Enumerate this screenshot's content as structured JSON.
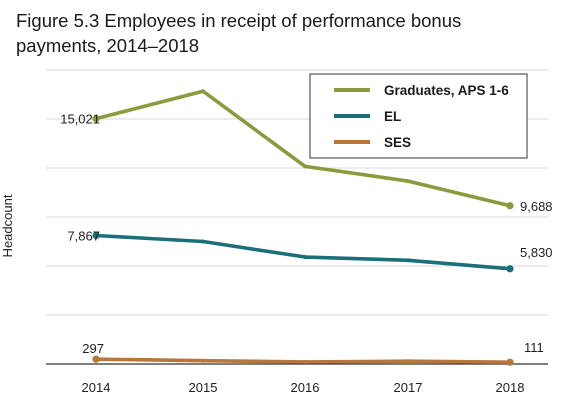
{
  "chart_data": {
    "type": "line",
    "title": "Figure 5.3 Employees in receipt of performance bonus payments, 2014–2018",
    "xlabel": "",
    "ylabel": "Headcount",
    "categories": [
      "2014",
      "2015",
      "2016",
      "2017",
      "2018"
    ],
    "ylim": [
      0,
      18000
    ],
    "grid": true,
    "legend_position": "top-right",
    "series": [
      {
        "name": "Graduates, APS 1-6",
        "color": "#8b9a3c",
        "values": [
          15021,
          16700,
          12100,
          11200,
          9688
        ],
        "labels": {
          "first": "15,021",
          "last": "9,688"
        }
      },
      {
        "name": "EL",
        "color": "#1b6f78",
        "values": [
          7867,
          7500,
          6550,
          6350,
          5830
        ],
        "labels": {
          "first": "7,867",
          "last": "5,830"
        }
      },
      {
        "name": "SES",
        "color": "#b8763a",
        "values": [
          297,
          200,
          130,
          170,
          111
        ],
        "labels": {
          "first": "297",
          "last": "111"
        }
      }
    ]
  }
}
